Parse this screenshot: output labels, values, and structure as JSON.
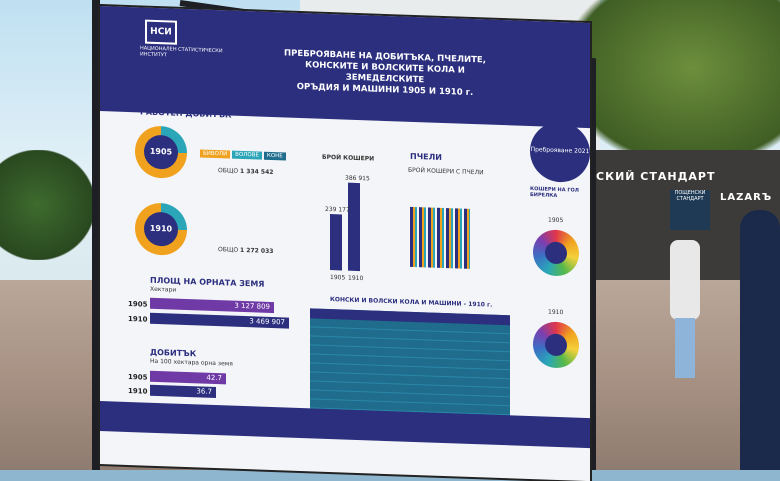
{
  "poster": {
    "institution": "НАЦИОНАЛЕН СТАТИСТИЧЕСКИ ИНСТИТУТ",
    "logo_mark": "НСИ",
    "title_line1": "ПРЕБРОЯВАНЕ НА ДОБИТЪКА, ПЧЕЛИТЕ,",
    "title_line2": "КОНСКИТЕ И ВОЛСКИТЕ КОЛА И ЗЕМЕДЕЛСКИТЕ",
    "title_line3": "ОРЪДИЯ И МАШИНИ 1905 И 1910 г.",
    "census_badge": "Преброяване 2021",
    "work_animals": {
      "heading": "РАБОТЕН ДОБИТЪК",
      "year_1905": "1905",
      "year_1910": "1910",
      "labels": [
        "БИВОЛИ",
        "ВОЛОВЕ",
        "КОНЕ"
      ],
      "total_label": "ОБЩО",
      "total_1905": "1 334 542",
      "total_1910": "1 272 033"
    },
    "bees": {
      "heading": "ПЧЕЛИ",
      "hives_label": "БРОЙ КОШЕРИ",
      "value_1905": "239 177",
      "value_1910": "386 915",
      "year_1905": "1905",
      "year_1910": "1910",
      "sub_label": "БРОЙ КОШЕРИ С ПЧЕЛИ"
    },
    "land": {
      "heading": "ПЛОЩ НА ОРНАТА ЗЕМЯ",
      "unit": "Хектари",
      "year_1905": "1905",
      "year_1910": "1910",
      "value_1905": "3 127 809",
      "value_1910": "3 469 907"
    },
    "livestock_density": {
      "heading": "ДОБИТЪК",
      "sub": "На 100 хектара орна земя",
      "year_1905": "1905",
      "year_1910": "1910",
      "value_1905": "42.7",
      "value_1910": "36.7"
    },
    "carts": {
      "heading": "КОНСКИ И ВОЛСКИ КОЛА И МАШИНИ - 1910 г."
    },
    "wheels": {
      "heading": "КОШЕРИ НА ГОЛ БИРЕЛКА",
      "year_1905": "1905",
      "year_1910": "1910"
    }
  },
  "street": {
    "shop_sign": "СКИЙ СТАНДАРТ",
    "shop_sign2": "LAZARЪ",
    "kiosk_sign": "ПОЩЕНСКИ СТАНДАРТ"
  },
  "colors": {
    "navy": "#2b2f7e",
    "teal": "#2aa6b8",
    "amber": "#f0a21f",
    "purple": "#6f3aa6"
  }
}
